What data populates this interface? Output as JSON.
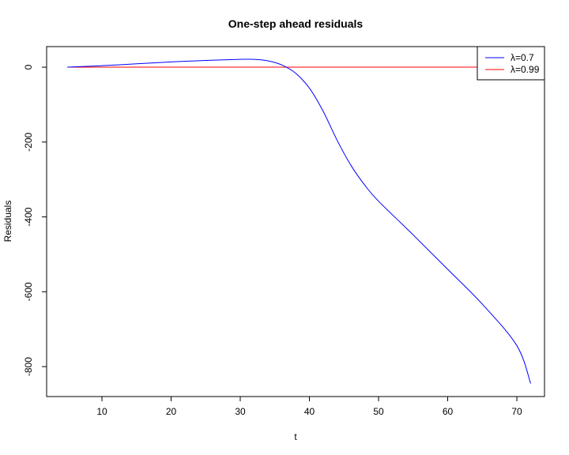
{
  "chart_data": {
    "type": "line",
    "title": "One-step ahead residuals",
    "xlabel": "t",
    "ylabel": "Residuals",
    "xlim": [
      2,
      74
    ],
    "ylim": [
      -880,
      55
    ],
    "x_ticks": [
      10,
      20,
      30,
      40,
      50,
      60,
      70
    ],
    "y_ticks": [
      0,
      -200,
      -400,
      -600,
      -800
    ],
    "grid": false,
    "legend_position": "top-right",
    "series": [
      {
        "name": "λ=0.7",
        "color": "#0000ff",
        "x": [
          5,
          10,
          15,
          20,
          25,
          30,
          32,
          34,
          36,
          38,
          40,
          42,
          44,
          46,
          48,
          50,
          55,
          60,
          65,
          70,
          72
        ],
        "y": [
          0,
          4,
          9,
          14,
          18,
          21,
          21,
          17,
          6,
          -16,
          -56,
          -118,
          -195,
          -262,
          -315,
          -358,
          -448,
          -540,
          -633,
          -744,
          -845
        ]
      },
      {
        "name": "λ=0.99",
        "color": "#ff0000",
        "x": [
          5,
          72
        ],
        "y": [
          0,
          0
        ]
      }
    ]
  }
}
